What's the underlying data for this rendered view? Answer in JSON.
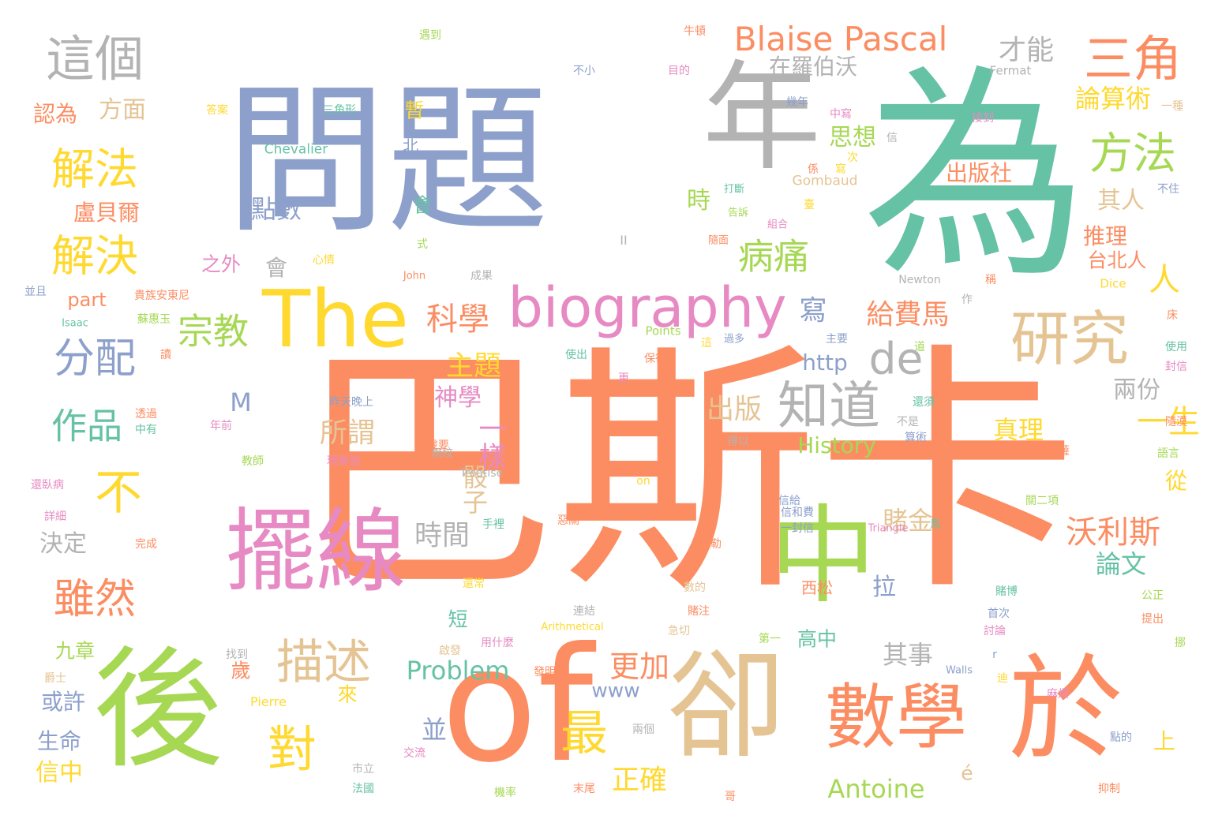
{
  "palette": {
    "orange": "#fc8d62",
    "teal": "#66c2a5",
    "blue": "#8da0cb",
    "pink": "#e78ac3",
    "green": "#a6d854",
    "yellow": "#ffd92f",
    "tan": "#e5c494",
    "gray": "#b3b3b3"
  },
  "words": [
    {
      "text": "巴斯卡",
      "color": "orange"
    },
    {
      "text": "為",
      "color": "teal"
    },
    {
      "text": "問題",
      "color": "blue"
    },
    {
      "text": "年",
      "color": "gray"
    },
    {
      "text": "後",
      "color": "green"
    },
    {
      "text": "of",
      "color": "orange"
    },
    {
      "text": "卻",
      "color": "tan"
    },
    {
      "text": "於",
      "color": "orange"
    },
    {
      "text": "中",
      "color": "green"
    },
    {
      "text": "擺線",
      "color": "pink"
    },
    {
      "text": "The",
      "color": "yellow"
    },
    {
      "text": "biography",
      "color": "pink"
    },
    {
      "text": "數學",
      "color": "orange"
    },
    {
      "text": "研究",
      "color": "tan"
    },
    {
      "text": "三角",
      "color": "orange"
    },
    {
      "text": "這個",
      "color": "gray"
    },
    {
      "text": "Blaise Pascal",
      "color": "orange"
    },
    {
      "text": "解法",
      "color": "yellow"
    },
    {
      "text": "解決",
      "color": "yellow"
    },
    {
      "text": "方法",
      "color": "green"
    },
    {
      "text": "知道",
      "color": "gray"
    },
    {
      "text": "de",
      "color": "gray"
    },
    {
      "text": "描述",
      "color": "tan"
    },
    {
      "text": "不",
      "color": "yellow"
    },
    {
      "text": "分配",
      "color": "blue"
    },
    {
      "text": "對",
      "color": "yellow"
    },
    {
      "text": "雖然",
      "color": "orange"
    },
    {
      "text": "病痛",
      "color": "green"
    },
    {
      "text": "科學",
      "color": "orange"
    },
    {
      "text": "宗教",
      "color": "green"
    },
    {
      "text": "最",
      "color": "yellow"
    },
    {
      "text": "一生",
      "color": "yellow"
    },
    {
      "text": "人",
      "color": "yellow"
    },
    {
      "text": "沃利斯",
      "color": "orange"
    },
    {
      "text": "作品",
      "color": "teal"
    },
    {
      "text": "點數",
      "color": "blue"
    },
    {
      "text": "給費馬",
      "color": "orange"
    },
    {
      "text": "寫",
      "color": "blue"
    },
    {
      "text": "論算術",
      "color": "yellow"
    },
    {
      "text": "思想",
      "color": "green"
    },
    {
      "text": "才能",
      "color": "gray"
    },
    {
      "text": "在羅伯沃",
      "color": "gray"
    },
    {
      "text": "出版社",
      "color": "orange"
    },
    {
      "text": "Problem",
      "color": "teal"
    },
    {
      "text": "Antoine",
      "color": "green"
    },
    {
      "text": "更加",
      "color": "orange"
    },
    {
      "text": "正確",
      "color": "yellow"
    },
    {
      "text": "主題",
      "color": "yellow"
    },
    {
      "text": "出版",
      "color": "tan"
    },
    {
      "text": "所謂",
      "color": "tan"
    },
    {
      "text": "時間",
      "color": "gray"
    },
    {
      "text": "骰子",
      "color": "tan"
    },
    {
      "text": "賭金",
      "color": "tan"
    },
    {
      "text": "一樣",
      "color": "pink"
    },
    {
      "text": "神學",
      "color": "pink"
    },
    {
      "text": "History",
      "color": "green"
    },
    {
      "text": "http",
      "color": "blue"
    },
    {
      "text": "真理",
      "color": "yellow"
    },
    {
      "text": "兩份",
      "color": "gray"
    },
    {
      "text": "論文",
      "color": "teal"
    },
    {
      "text": "其事",
      "color": "gray"
    },
    {
      "text": "拉",
      "color": "blue"
    },
    {
      "text": "盧貝爾",
      "color": "orange"
    },
    {
      "text": "part",
      "color": "orange"
    },
    {
      "text": "之外",
      "color": "pink"
    },
    {
      "text": "會",
      "color": "gray"
    },
    {
      "text": "方面",
      "color": "tan"
    },
    {
      "text": "認為",
      "color": "orange"
    },
    {
      "text": "決定",
      "color": "gray"
    },
    {
      "text": "九章",
      "color": "green"
    },
    {
      "text": "或許",
      "color": "blue"
    },
    {
      "text": "生命",
      "color": "blue"
    },
    {
      "text": "信中",
      "color": "yellow"
    },
    {
      "text": "M",
      "color": "blue"
    },
    {
      "text": "歲",
      "color": "orange"
    },
    {
      "text": "來",
      "color": "yellow"
    },
    {
      "text": "並",
      "color": "blue"
    },
    {
      "text": "www",
      "color": "blue"
    },
    {
      "text": "é",
      "color": "tan"
    },
    {
      "text": "時",
      "color": "green"
    },
    {
      "text": "其人",
      "color": "tan"
    },
    {
      "text": "推理",
      "color": "orange"
    },
    {
      "text": "台北人",
      "color": "orange"
    },
    {
      "text": "從",
      "color": "yellow"
    },
    {
      "text": "上",
      "color": "yellow"
    },
    {
      "text": "暫",
      "color": "yellow"
    },
    {
      "text": "北",
      "color": "blue"
    },
    {
      "text": "會",
      "color": "teal"
    },
    {
      "text": "短",
      "color": "teal"
    },
    {
      "text": "高中",
      "color": "teal"
    },
    {
      "text": "西松",
      "color": "orange"
    },
    {
      "text": "Chevalier",
      "color": "teal"
    },
    {
      "text": "Gombaud",
      "color": "tan"
    },
    {
      "text": "Fermat",
      "color": "gray"
    },
    {
      "text": "Points",
      "color": "green"
    },
    {
      "text": "Treatise",
      "color": "gray"
    },
    {
      "text": "Triangle",
      "color": "pink"
    },
    {
      "text": "Arithmetical",
      "color": "yellow"
    },
    {
      "text": "Pierre",
      "color": "yellow"
    },
    {
      "text": "Walls",
      "color": "blue"
    },
    {
      "text": "Isaac",
      "color": "teal"
    },
    {
      "text": "John",
      "color": "orange"
    },
    {
      "text": "Newton",
      "color": "gray"
    },
    {
      "text": "Dice",
      "color": "yellow"
    },
    {
      "text": "on",
      "color": "yellow"
    },
    {
      "text": "II",
      "color": "gray"
    },
    {
      "text": "I",
      "color": "orange"
    },
    {
      "text": "r",
      "color": "blue"
    },
    {
      "text": "遇到",
      "color": "green"
    },
    {
      "text": "牛頓",
      "color": "orange"
    },
    {
      "text": "不小",
      "color": "blue"
    },
    {
      "text": "目的",
      "color": "pink"
    },
    {
      "text": "答案",
      "color": "yellow"
    },
    {
      "text": "三角形",
      "color": "teal"
    },
    {
      "text": "幾年",
      "color": "blue"
    },
    {
      "text": "中寫",
      "color": "pink"
    },
    {
      "text": "接到",
      "color": "pink"
    },
    {
      "text": "一種",
      "color": "tan"
    },
    {
      "text": "打斷",
      "color": "teal"
    },
    {
      "text": "告訴",
      "color": "green"
    },
    {
      "text": "組合",
      "color": "pink"
    },
    {
      "text": "不住",
      "color": "blue"
    },
    {
      "text": "隨面",
      "color": "orange"
    },
    {
      "text": "心情",
      "color": "yellow"
    },
    {
      "text": "成果",
      "color": "gray"
    },
    {
      "text": "並且",
      "color": "blue"
    },
    {
      "text": "貴族安東尼",
      "color": "orange"
    },
    {
      "text": "蘇惠玉",
      "color": "green"
    },
    {
      "text": "使出",
      "color": "teal"
    },
    {
      "text": "保德",
      "color": "orange"
    },
    {
      "text": "過多",
      "color": "blue"
    },
    {
      "text": "主要",
      "color": "blue"
    },
    {
      "text": "使用",
      "color": "teal"
    },
    {
      "text": "封信",
      "color": "pink"
    },
    {
      "text": "透過",
      "color": "orange"
    },
    {
      "text": "中有",
      "color": "teal"
    },
    {
      "text": "昨天晚上",
      "color": "blue"
    },
    {
      "text": "年前",
      "color": "pink"
    },
    {
      "text": "現兩個",
      "color": "pink"
    },
    {
      "text": "教師",
      "color": "green"
    },
    {
      "text": "雨校",
      "color": "gray"
    },
    {
      "text": "還須",
      "color": "teal"
    },
    {
      "text": "不是",
      "color": "gray"
    },
    {
      "text": "算術",
      "color": "blue"
    },
    {
      "text": "隨漠",
      "color": "orange"
    },
    {
      "text": "語言",
      "color": "green"
    },
    {
      "text": "從卡爾卡薩",
      "color": "orange"
    },
    {
      "text": "得以",
      "color": "gray"
    },
    {
      "text": "還臥病",
      "color": "pink"
    },
    {
      "text": "詳細",
      "color": "pink"
    },
    {
      "text": "完成",
      "color": "orange"
    },
    {
      "text": "手裡",
      "color": "teal"
    },
    {
      "text": "惡關",
      "color": "orange"
    },
    {
      "text": "信給",
      "color": "blue"
    },
    {
      "text": "信和費",
      "color": "blue"
    },
    {
      "text": "一封信",
      "color": "blue"
    },
    {
      "text": "默勒",
      "color": "orange"
    },
    {
      "text": "關二項",
      "color": "green"
    },
    {
      "text": "馬",
      "color": "teal"
    },
    {
      "text": "還常",
      "color": "yellow"
    },
    {
      "text": "連結",
      "color": "gray"
    },
    {
      "text": "賭注",
      "color": "orange"
    },
    {
      "text": "數的",
      "color": "tan"
    },
    {
      "text": "賭博",
      "color": "teal"
    },
    {
      "text": "首次",
      "color": "blue"
    },
    {
      "text": "公正",
      "color": "green"
    },
    {
      "text": "提出",
      "color": "orange"
    },
    {
      "text": "討論",
      "color": "pink"
    },
    {
      "text": "用什麼",
      "color": "pink"
    },
    {
      "text": "啟發",
      "color": "tan"
    },
    {
      "text": "急切",
      "color": "tan"
    },
    {
      "text": "第一",
      "color": "green"
    },
    {
      "text": "找到",
      "color": "gray"
    },
    {
      "text": "發明",
      "color": "orange"
    },
    {
      "text": "爵士",
      "color": "tan"
    },
    {
      "text": "麻煩",
      "color": "pink"
    },
    {
      "text": "兩個",
      "color": "gray"
    },
    {
      "text": "點的",
      "color": "blue"
    },
    {
      "text": "交流",
      "color": "pink"
    },
    {
      "text": "市立",
      "color": "gray"
    },
    {
      "text": "法國",
      "color": "teal"
    },
    {
      "text": "機率",
      "color": "green"
    },
    {
      "text": "末尾",
      "color": "orange"
    },
    {
      "text": "哥",
      "color": "orange"
    },
    {
      "text": "抑制",
      "color": "orange"
    },
    {
      "text": "迪",
      "color": "yellow"
    },
    {
      "text": "挪",
      "color": "green"
    },
    {
      "text": "床",
      "color": "orange"
    },
    {
      "text": "稱",
      "color": "orange"
    },
    {
      "text": "作",
      "color": "gray"
    },
    {
      "text": "這",
      "color": "yellow"
    },
    {
      "text": "道",
      "color": "green"
    },
    {
      "text": "信",
      "color": "gray"
    },
    {
      "text": "係",
      "color": "orange"
    },
    {
      "text": "次",
      "color": "yellow"
    },
    {
      "text": "臺",
      "color": "yellow"
    },
    {
      "text": "寫",
      "color": "yellow"
    },
    {
      "text": "式",
      "color": "green"
    },
    {
      "text": "更",
      "color": "pink"
    },
    {
      "text": "讀",
      "color": "orange"
    },
    {
      "text": "靈要",
      "color": "orange"
    }
  ]
}
